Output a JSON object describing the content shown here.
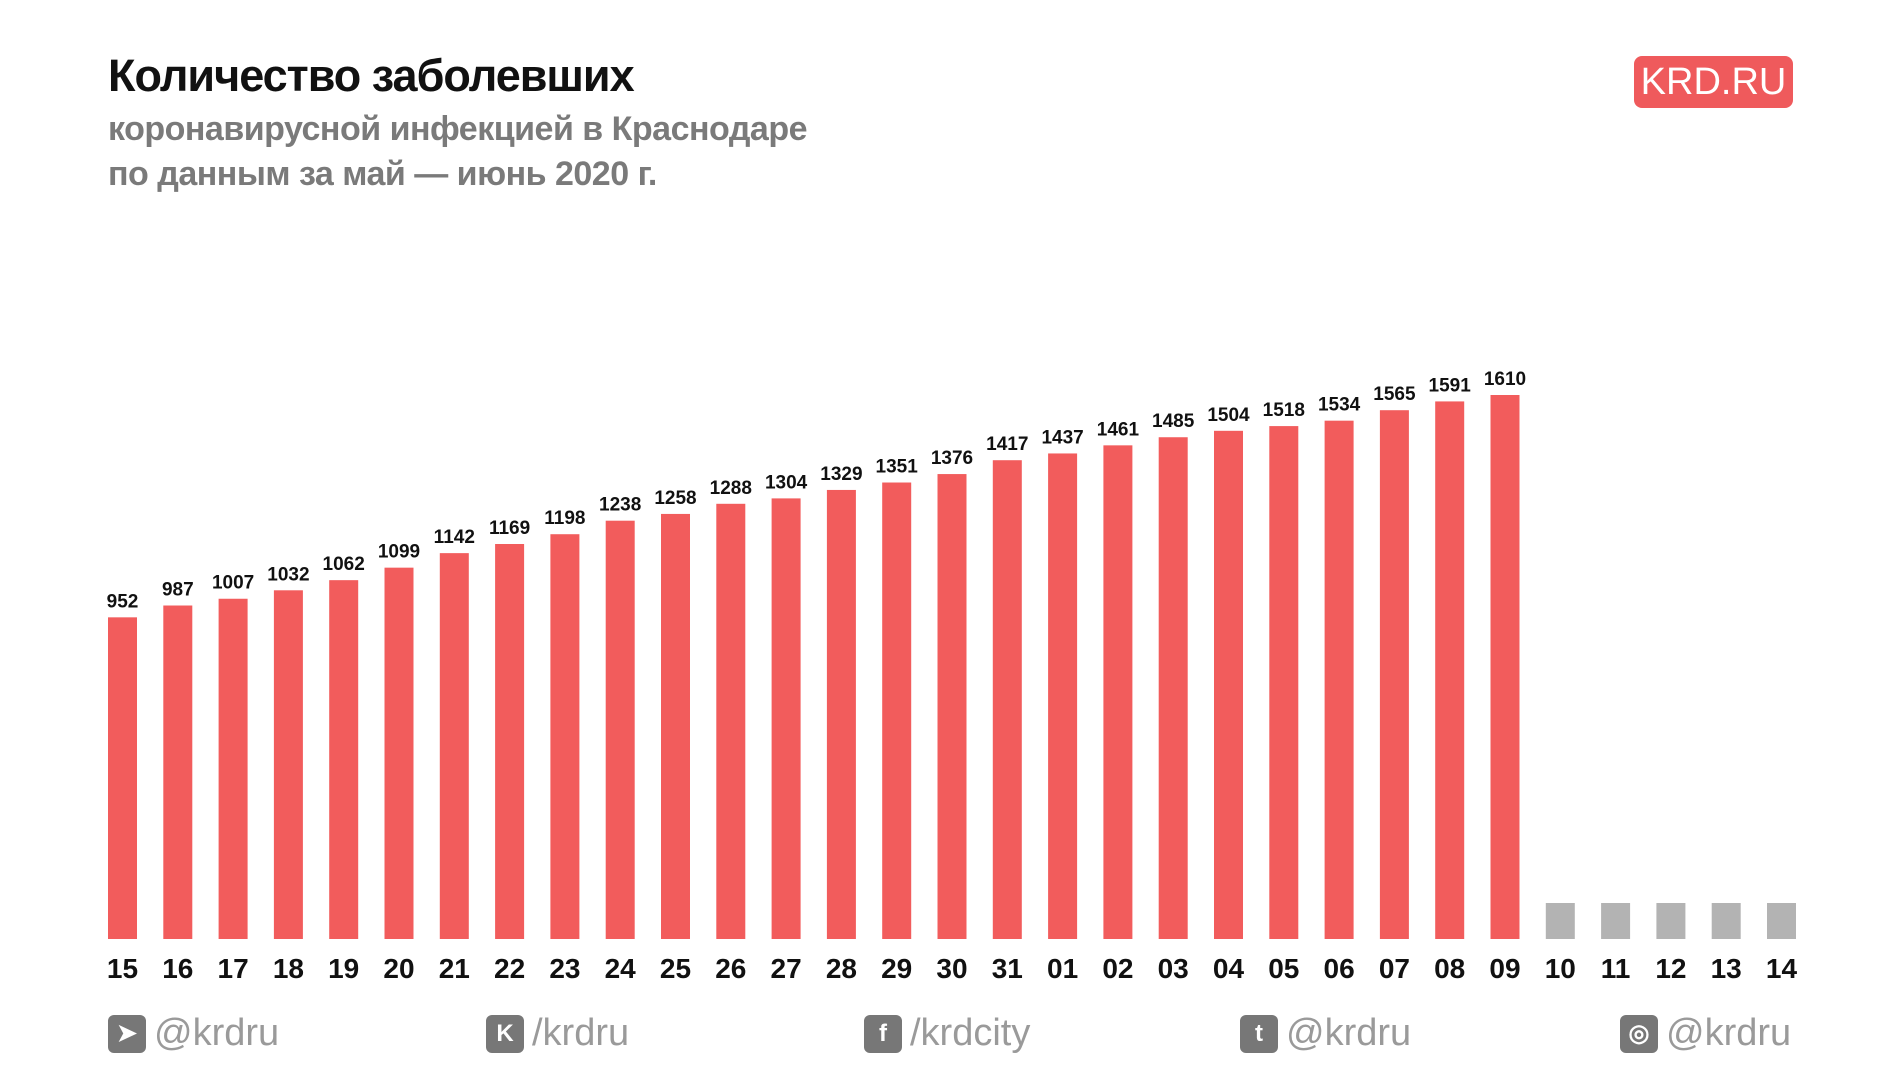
{
  "header": {
    "title": "Количество заболевших",
    "subtitle_line1": "коронавирусной инфекцией в Краснодаре",
    "subtitle_line2": "по данным за май — июнь 2020 г.",
    "logo": "KRD.RU"
  },
  "colors": {
    "bar": "#f25c5c",
    "placeholder": "#b3b3b3",
    "logo": "#ef5a5c"
  },
  "chart_data": {
    "type": "bar",
    "title": "Количество заболевших коронавирусной инфекцией в Краснодаре по данным за май — июнь 2020 г.",
    "xlabel": "",
    "ylabel": "",
    "categories": [
      "15",
      "16",
      "17",
      "18",
      "19",
      "20",
      "21",
      "22",
      "23",
      "24",
      "25",
      "26",
      "27",
      "28",
      "29",
      "30",
      "31",
      "01",
      "02",
      "03",
      "04",
      "05",
      "06",
      "07",
      "08",
      "09",
      "10",
      "11",
      "12",
      "13",
      "14"
    ],
    "values": [
      952,
      987,
      1007,
      1032,
      1062,
      1099,
      1142,
      1169,
      1198,
      1238,
      1258,
      1288,
      1304,
      1329,
      1351,
      1376,
      1417,
      1437,
      1461,
      1485,
      1504,
      1518,
      1534,
      1565,
      1591,
      1610,
      null,
      null,
      null,
      null,
      null
    ],
    "ylim": [
      0,
      1610
    ],
    "grid": false
  },
  "footer": [
    {
      "icon": "telegram-icon",
      "glyph": "➤",
      "handle": "@krdru"
    },
    {
      "icon": "vk-icon",
      "glyph": "K",
      "handle": "/krdru"
    },
    {
      "icon": "facebook-icon",
      "glyph": "f",
      "handle": "/krdcity"
    },
    {
      "icon": "twitter-icon",
      "glyph": "t",
      "handle": "@krdru"
    },
    {
      "icon": "instagram-icon",
      "glyph": "◎",
      "handle": "@krdru"
    }
  ]
}
